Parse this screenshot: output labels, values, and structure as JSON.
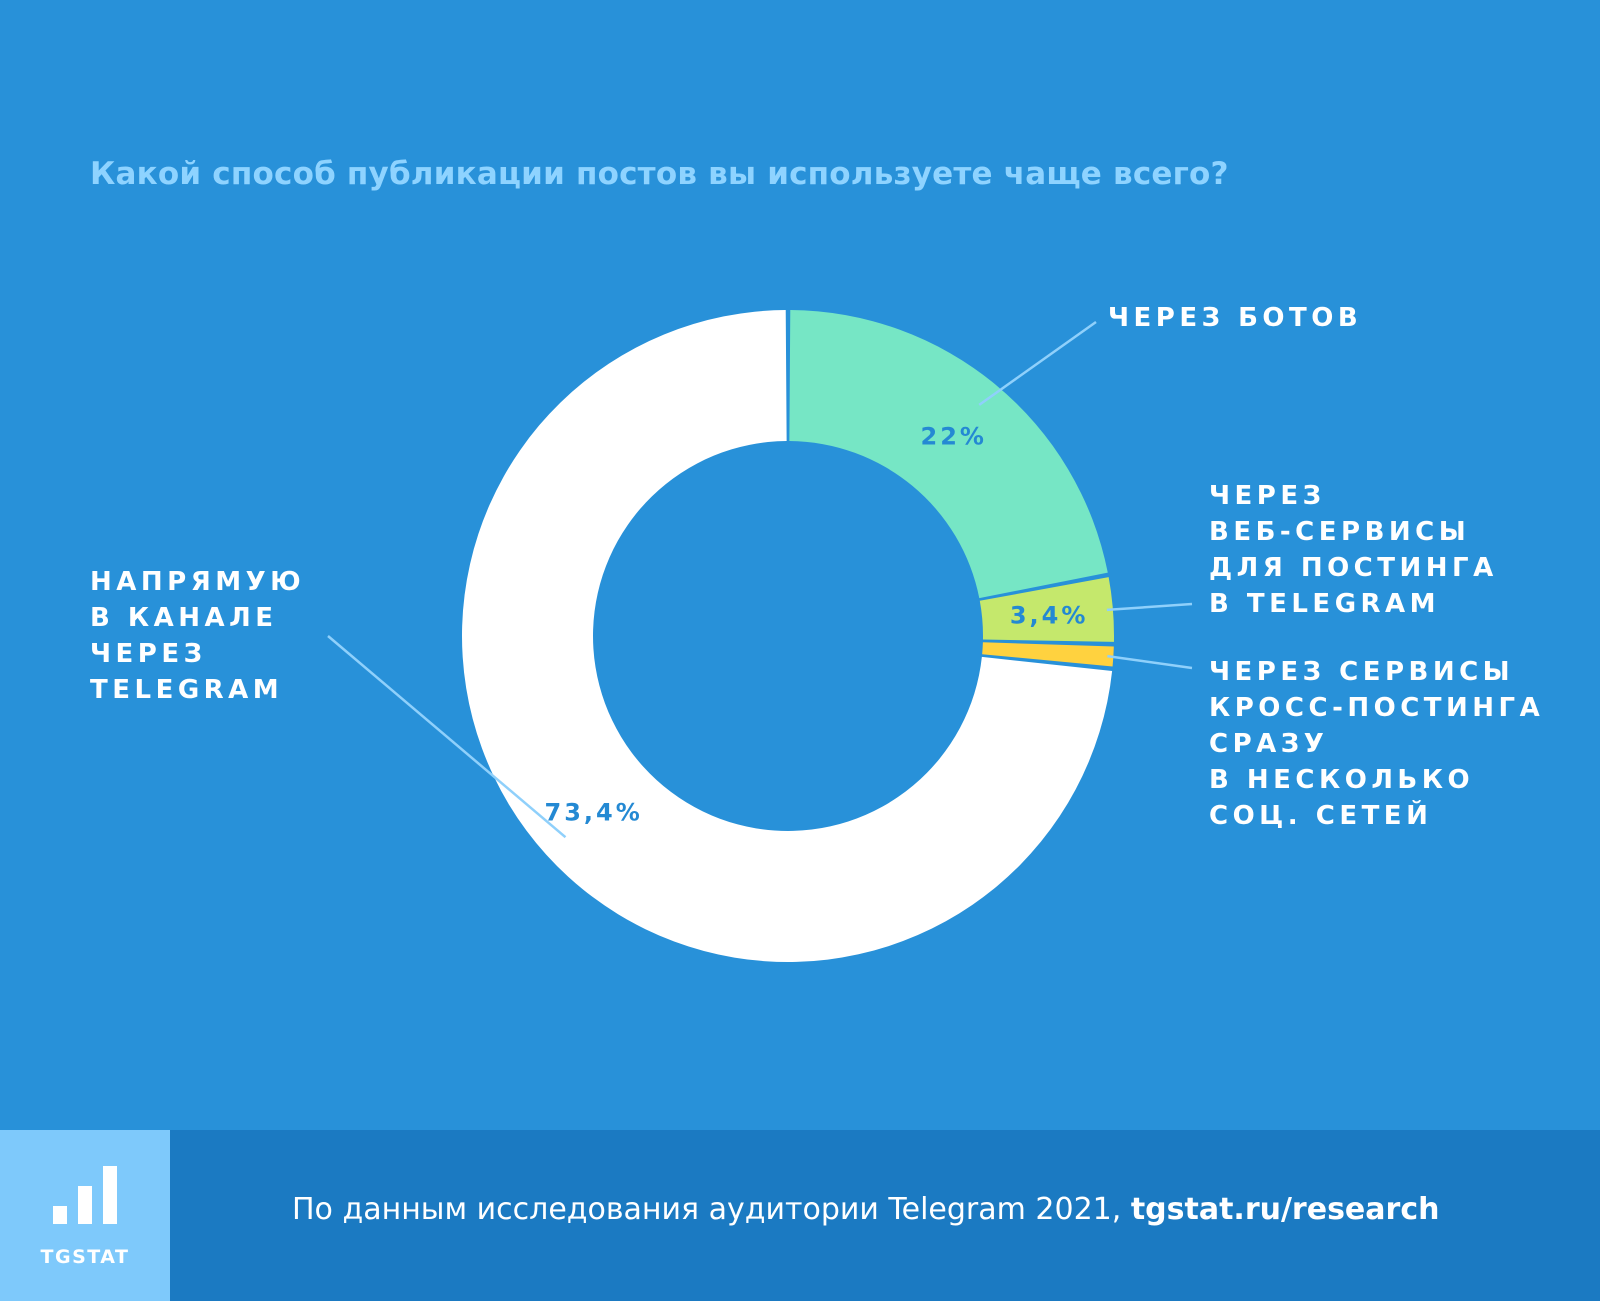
{
  "header": {
    "title": "Какой способ публикации постов вы используете чаще всего?"
  },
  "chart_data": {
    "type": "pie",
    "variant": "donut",
    "title": "Какой способ публикации постов вы используете чаще всего?",
    "slices": [
      {
        "value": 22,
        "value_label": "22%",
        "color": "#76e6c5",
        "label_lines": [
          "ЧЕРЕЗ БОТОВ"
        ]
      },
      {
        "value": 3.4,
        "value_label": "3,4%",
        "color": "#c5e86c",
        "label_lines": [
          "ЧЕРЕЗ",
          "ВЕБ-СЕРВИСЫ",
          "ДЛЯ ПОСТИНГА",
          "В TELEGRAM"
        ]
      },
      {
        "value": 1.2,
        "value_label": "",
        "color": "#ffd23f",
        "label_lines": [
          "ЧЕРЕЗ СЕРВИСЫ",
          "КРОСС-ПОСТИНГА",
          "СРАЗУ",
          "В НЕСКОЛЬКО",
          "СОЦ. СЕТЕЙ"
        ]
      },
      {
        "value": 73.4,
        "value_label": "73,4%",
        "color": "#ffffff",
        "label_lines": [
          "НАПРЯМУЮ",
          "В КАНАЛЕ",
          "ЧЕРЕЗ",
          "TELEGRAM"
        ]
      }
    ],
    "colors": {
      "background": "#2891d9",
      "value_text": "#2489d3",
      "leader": "#8fd0fb"
    }
  },
  "footer": {
    "logo_text": "TGSTAT",
    "source_text": "По данным исследования аудитории Telegram 2021, ",
    "source_link": "tgstat.ru/research"
  }
}
